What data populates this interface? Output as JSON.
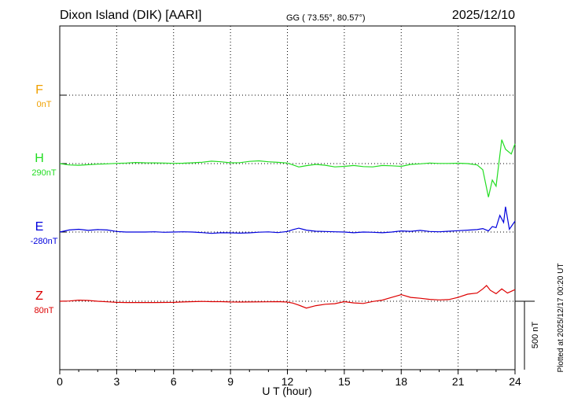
{
  "header": {
    "station": "Dixon Island (DIK)  [AARI]",
    "coords": "GG ( 73.55°,  80.57°)",
    "date": "2025/12/10"
  },
  "side_note": "Plotted at 2025/12/17 00:20 UT",
  "chart_data": {
    "type": "line",
    "xlabel": "U T (hour)",
    "xlim": [
      0,
      24
    ],
    "x_ticks": [
      "0",
      "3",
      "6",
      "9",
      "12",
      "15",
      "18",
      "21",
      "24"
    ],
    "scale_label": "500 nT",
    "grid": true,
    "series": [
      {
        "name": "F",
        "baseline": "0nT",
        "color": "#f0a000",
        "points": []
      },
      {
        "name": "H",
        "baseline": "290nT",
        "color": "#22dd22",
        "points": [
          [
            0,
            0
          ],
          [
            0.5,
            10
          ],
          [
            1,
            12
          ],
          [
            1.5,
            8
          ],
          [
            2,
            4
          ],
          [
            2.5,
            2
          ],
          [
            3,
            -2
          ],
          [
            3.5,
            -4
          ],
          [
            4,
            -8
          ],
          [
            4.5,
            -6
          ],
          [
            5,
            -5
          ],
          [
            5.5,
            -4
          ],
          [
            6,
            -2
          ],
          [
            6.5,
            -3
          ],
          [
            7,
            -6
          ],
          [
            7.5,
            -10
          ],
          [
            8,
            -18
          ],
          [
            8.5,
            -13
          ],
          [
            9,
            -6
          ],
          [
            9.5,
            -7
          ],
          [
            10,
            -16
          ],
          [
            10.5,
            -20
          ],
          [
            11,
            -13
          ],
          [
            11.5,
            -9
          ],
          [
            12,
            -4
          ],
          [
            12.3,
            10
          ],
          [
            12.6,
            25
          ],
          [
            13,
            15
          ],
          [
            13.5,
            6
          ],
          [
            14,
            12
          ],
          [
            14.5,
            24
          ],
          [
            15,
            20
          ],
          [
            15.5,
            14
          ],
          [
            16,
            22
          ],
          [
            16.5,
            24
          ],
          [
            17,
            14
          ],
          [
            17.5,
            16
          ],
          [
            18,
            20
          ],
          [
            18.5,
            6
          ],
          [
            19,
            2
          ],
          [
            19.5,
            -4
          ],
          [
            20,
            -1
          ],
          [
            20.5,
            -1
          ],
          [
            21,
            -3
          ],
          [
            21.5,
            0
          ],
          [
            22,
            10
          ],
          [
            22.3,
            45
          ],
          [
            22.6,
            245
          ],
          [
            22.8,
            120
          ],
          [
            23,
            165
          ],
          [
            23.3,
            -175
          ],
          [
            23.5,
            -105
          ],
          [
            23.8,
            -70
          ],
          [
            24,
            -145
          ]
        ]
      },
      {
        "name": "E",
        "baseline": "-280nT",
        "color": "#0000dd",
        "points": [
          [
            0,
            0
          ],
          [
            0.5,
            -15
          ],
          [
            1,
            -20
          ],
          [
            1.5,
            -12
          ],
          [
            2,
            -18
          ],
          [
            2.5,
            -15
          ],
          [
            3,
            -4
          ],
          [
            3.5,
            0
          ],
          [
            4,
            0
          ],
          [
            4.5,
            0
          ],
          [
            5,
            -2
          ],
          [
            5.5,
            2
          ],
          [
            6,
            0
          ],
          [
            6.5,
            -2
          ],
          [
            7,
            0
          ],
          [
            7.5,
            4
          ],
          [
            8,
            10
          ],
          [
            8.5,
            5
          ],
          [
            9,
            6
          ],
          [
            9.5,
            8
          ],
          [
            10,
            6
          ],
          [
            10.5,
            1
          ],
          [
            11,
            -1
          ],
          [
            11.5,
            4
          ],
          [
            12,
            -4
          ],
          [
            12.3,
            -18
          ],
          [
            12.6,
            -28
          ],
          [
            13,
            -14
          ],
          [
            13.5,
            -6
          ],
          [
            14,
            -4
          ],
          [
            14.5,
            -2
          ],
          [
            15,
            0
          ],
          [
            15.5,
            5
          ],
          [
            16,
            0
          ],
          [
            16.5,
            2
          ],
          [
            17,
            5
          ],
          [
            17.5,
            0
          ],
          [
            18,
            -8
          ],
          [
            18.5,
            -5
          ],
          [
            19,
            -12
          ],
          [
            19.5,
            -4
          ],
          [
            20,
            -2
          ],
          [
            20.5,
            -6
          ],
          [
            21,
            -10
          ],
          [
            21.5,
            -14
          ],
          [
            22,
            -18
          ],
          [
            22.3,
            -25
          ],
          [
            22.6,
            -8
          ],
          [
            22.8,
            -40
          ],
          [
            23,
            -32
          ],
          [
            23.2,
            -122
          ],
          [
            23.4,
            -70
          ],
          [
            23.5,
            -185
          ],
          [
            23.7,
            -20
          ],
          [
            24,
            -80
          ]
        ]
      },
      {
        "name": "Z",
        "baseline": "80nT",
        "color": "#dd0000",
        "points": [
          [
            0,
            0
          ],
          [
            0.5,
            -2
          ],
          [
            1,
            -8
          ],
          [
            1.5,
            -6
          ],
          [
            2,
            0
          ],
          [
            2.5,
            4
          ],
          [
            3,
            8
          ],
          [
            3.5,
            9
          ],
          [
            4,
            9
          ],
          [
            5,
            9
          ],
          [
            6,
            8
          ],
          [
            6.5,
            5
          ],
          [
            7,
            3
          ],
          [
            7.5,
            1
          ],
          [
            8,
            3
          ],
          [
            8.5,
            3
          ],
          [
            9,
            5
          ],
          [
            9.5,
            6
          ],
          [
            10,
            5
          ],
          [
            11,
            4
          ],
          [
            11.5,
            3
          ],
          [
            12,
            6
          ],
          [
            12.3,
            14
          ],
          [
            12.6,
            28
          ],
          [
            13,
            50
          ],
          [
            13.5,
            32
          ],
          [
            14,
            22
          ],
          [
            14.5,
            18
          ],
          [
            15,
            3
          ],
          [
            15.5,
            12
          ],
          [
            16,
            16
          ],
          [
            16.5,
            2
          ],
          [
            17,
            -8
          ],
          [
            17.5,
            -28
          ],
          [
            18,
            -48
          ],
          [
            18.5,
            -28
          ],
          [
            19,
            -22
          ],
          [
            19.5,
            -14
          ],
          [
            20,
            -10
          ],
          [
            20.5,
            -12
          ],
          [
            21,
            -28
          ],
          [
            21.5,
            -52
          ],
          [
            22,
            -60
          ],
          [
            22.3,
            -90
          ],
          [
            22.5,
            -115
          ],
          [
            22.7,
            -80
          ],
          [
            23,
            -55
          ],
          [
            23.3,
            -90
          ],
          [
            23.6,
            -60
          ],
          [
            24,
            -85
          ]
        ]
      }
    ]
  }
}
